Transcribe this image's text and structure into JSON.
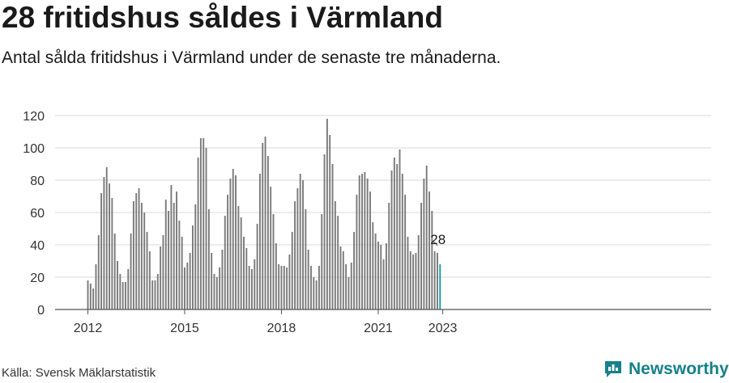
{
  "header": {
    "title": "28 fritidshus såldes i Värmland",
    "subtitle": "Antal sålda fritidshus i Värmland under de senaste tre månaderna."
  },
  "footer": {
    "source": "Källa: Svensk Mäklarstatistik",
    "brand": "Newsworthy",
    "brand_icon": "newsworthy-logo-icon"
  },
  "colors": {
    "bar": "#7a7a7a",
    "highlight": "#1a9aa4",
    "brand": "#16818a"
  },
  "chart_data": {
    "type": "bar",
    "x_start": "2012-01",
    "x_unit": "month",
    "x_ticks": [
      "2012",
      "2015",
      "2018",
      "2021",
      "2023"
    ],
    "y_ticks": [
      0,
      20,
      40,
      60,
      80,
      100,
      120
    ],
    "ylim": [
      0,
      120
    ],
    "grid": true,
    "values": [
      18,
      16,
      13,
      28,
      46,
      72,
      82,
      88,
      78,
      69,
      47,
      30,
      22,
      17,
      17,
      25,
      47,
      67,
      72,
      75,
      66,
      60,
      48,
      36,
      18,
      18,
      22,
      39,
      46,
      68,
      61,
      77,
      66,
      73,
      55,
      45,
      26,
      29,
      35,
      52,
      65,
      94,
      106,
      106,
      100,
      62,
      35,
      22,
      20,
      26,
      37,
      58,
      71,
      81,
      87,
      83,
      64,
      57,
      45,
      38,
      27,
      25,
      31,
      53,
      84,
      103,
      107,
      95,
      76,
      59,
      41,
      28,
      27,
      27,
      26,
      34,
      48,
      67,
      75,
      84,
      80,
      62,
      37,
      27,
      20,
      18,
      27,
      59,
      96,
      118,
      108,
      90,
      67,
      58,
      39,
      36,
      28,
      20,
      29,
      48,
      71,
      83,
      84,
      85,
      81,
      73,
      54,
      47,
      42,
      40,
      31,
      41,
      66,
      86,
      94,
      90,
      99,
      84,
      71,
      45,
      36,
      34,
      35,
      46,
      66,
      81,
      89,
      73,
      61,
      36,
      35,
      28
    ],
    "highlight_last": true,
    "last_label": "28"
  }
}
